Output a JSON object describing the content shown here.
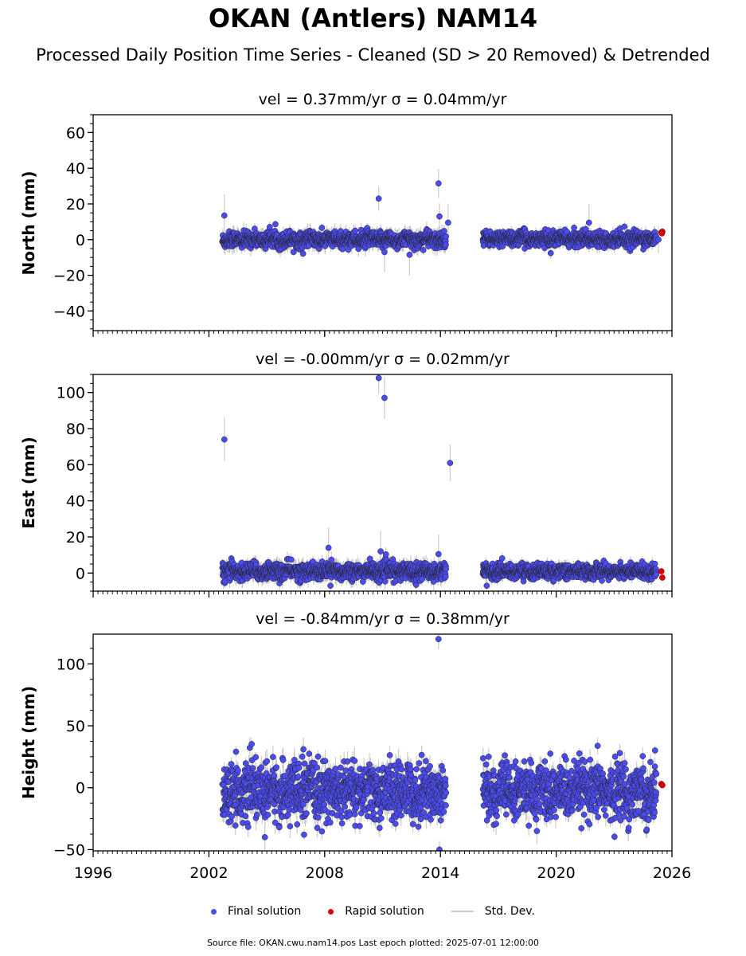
{
  "title": "OKAN (Antlers) NAM14",
  "subtitle": "Processed Daily Position Time Series - Cleaned (SD > 20 Removed) & Detrended",
  "legend": {
    "final": "Final solution",
    "rapid": "Rapid solution",
    "std": "Std. Dev."
  },
  "footer": "Source file: OKAN.cwu.nam14.pos  Last epoch plotted: 2025-07-01 12:00:00",
  "colors": {
    "final": "#4b4bf0",
    "rapid": "#e00000",
    "std": "#bbbbbb",
    "edge": "#222222"
  },
  "chart_data": [
    {
      "type": "scatter",
      "title": "vel = 0.37mm/yr   σ = 0.04mm/yr",
      "ylabel": "North (mm)",
      "xlim": [
        1996,
        2026
      ],
      "ylim": [
        -51,
        70
      ],
      "yticks": [
        -40,
        -20,
        0,
        20,
        40,
        60
      ],
      "ytick_labels": [
        "−40",
        "−20",
        "0",
        "20",
        "40",
        "60"
      ],
      "xticks": [
        1996,
        2002,
        2008,
        2014,
        2020,
        2026
      ],
      "xtick_labels": [],
      "series": [
        {
          "name": "Final solution",
          "kind": "final",
          "segments": [
            {
              "x0": 2002.7,
              "x1": 2014.3,
              "center": 0,
              "spread": 2.2,
              "std": 4
            },
            {
              "x0": 2016.2,
              "x1": 2025.2,
              "center": 0.5,
              "spread": 2.0,
              "std": 3
            }
          ],
          "outliers": [
            {
              "x": 2002.8,
              "y": 13.5
            },
            {
              "x": 2010.8,
              "y": 23
            },
            {
              "x": 2011.1,
              "y": -7
            },
            {
              "x": 2012.4,
              "y": -8.5
            },
            {
              "x": 2013.9,
              "y": 31.5
            },
            {
              "x": 2013.95,
              "y": 13
            },
            {
              "x": 2014.4,
              "y": 9.5
            },
            {
              "x": 2021.7,
              "y": 9.5
            },
            {
              "x": 2025.3,
              "y": 0
            }
          ]
        },
        {
          "name": "Rapid solution",
          "kind": "rapid",
          "points": [
            {
              "x": 2025.45,
              "y": 4
            },
            {
              "x": 2025.5,
              "y": 4.5
            },
            {
              "x": 2025.48,
              "y": 3.5
            }
          ]
        }
      ]
    },
    {
      "type": "scatter",
      "title": "vel = -0.00mm/yr   σ = 0.02mm/yr",
      "ylabel": "East (mm)",
      "xlim": [
        1996,
        2026
      ],
      "ylim": [
        -10,
        110
      ],
      "yticks": [
        0,
        20,
        40,
        60,
        80,
        100
      ],
      "ytick_labels": [
        "0",
        "20",
        "40",
        "60",
        "80",
        "100"
      ],
      "xticks": [
        1996,
        2002,
        2008,
        2014,
        2020,
        2026
      ],
      "xtick_labels": [],
      "series": [
        {
          "name": "Final solution",
          "kind": "final",
          "segments": [
            {
              "x0": 2002.7,
              "x1": 2014.3,
              "center": 1,
              "spread": 2.3,
              "std": 4
            },
            {
              "x0": 2016.2,
              "x1": 2025.2,
              "center": 1,
              "spread": 2.0,
              "std": 3
            }
          ],
          "outliers": [
            {
              "x": 2002.8,
              "y": 74
            },
            {
              "x": 2010.8,
              "y": 108
            },
            {
              "x": 2011.1,
              "y": 97
            },
            {
              "x": 2010.9,
              "y": 12
            },
            {
              "x": 2013.9,
              "y": 10.5
            },
            {
              "x": 2014.5,
              "y": 61
            },
            {
              "x": 2008.2,
              "y": 14
            },
            {
              "x": 2008.3,
              "y": -7
            },
            {
              "x": 2016.4,
              "y": -7
            }
          ]
        },
        {
          "name": "Rapid solution",
          "kind": "rapid",
          "points": [
            {
              "x": 2025.45,
              "y": 1
            },
            {
              "x": 2025.5,
              "y": -2.5
            }
          ]
        }
      ]
    },
    {
      "type": "scatter",
      "title": "vel = -0.84mm/yr   σ = 0.38mm/yr",
      "ylabel": "Height (mm)",
      "xlim": [
        1996,
        2026
      ],
      "ylim": [
        -51,
        124
      ],
      "yticks": [
        -50,
        0,
        50,
        100
      ],
      "ytick_labels": [
        "−50",
        "0",
        "50",
        "100"
      ],
      "xticks": [
        1996,
        2002,
        2008,
        2014,
        2020,
        2026
      ],
      "xtick_labels": [
        "1996",
        "2002",
        "2008",
        "2014",
        "2020",
        "2026"
      ],
      "series": [
        {
          "name": "Final solution",
          "kind": "final",
          "segments": [
            {
              "x0": 2002.7,
              "x1": 2014.3,
              "center": -3,
              "spread": 11,
              "std": 9
            },
            {
              "x0": 2016.2,
              "x1": 2025.2,
              "center": -3,
              "spread": 11,
              "std": 8
            }
          ],
          "outliers": [
            {
              "x": 2013.9,
              "y": 120
            },
            {
              "x": 2013.95,
              "y": -50
            },
            {
              "x": 2004.9,
              "y": -40
            },
            {
              "x": 2016.5,
              "y": 25
            },
            {
              "x": 2006.9,
              "y": 31
            },
            {
              "x": 2023.3,
              "y": 28
            },
            {
              "x": 2019.0,
              "y": -35
            }
          ]
        },
        {
          "name": "Rapid solution",
          "kind": "rapid",
          "points": [
            {
              "x": 2025.45,
              "y": 3
            },
            {
              "x": 2025.5,
              "y": 2
            }
          ]
        }
      ]
    }
  ]
}
